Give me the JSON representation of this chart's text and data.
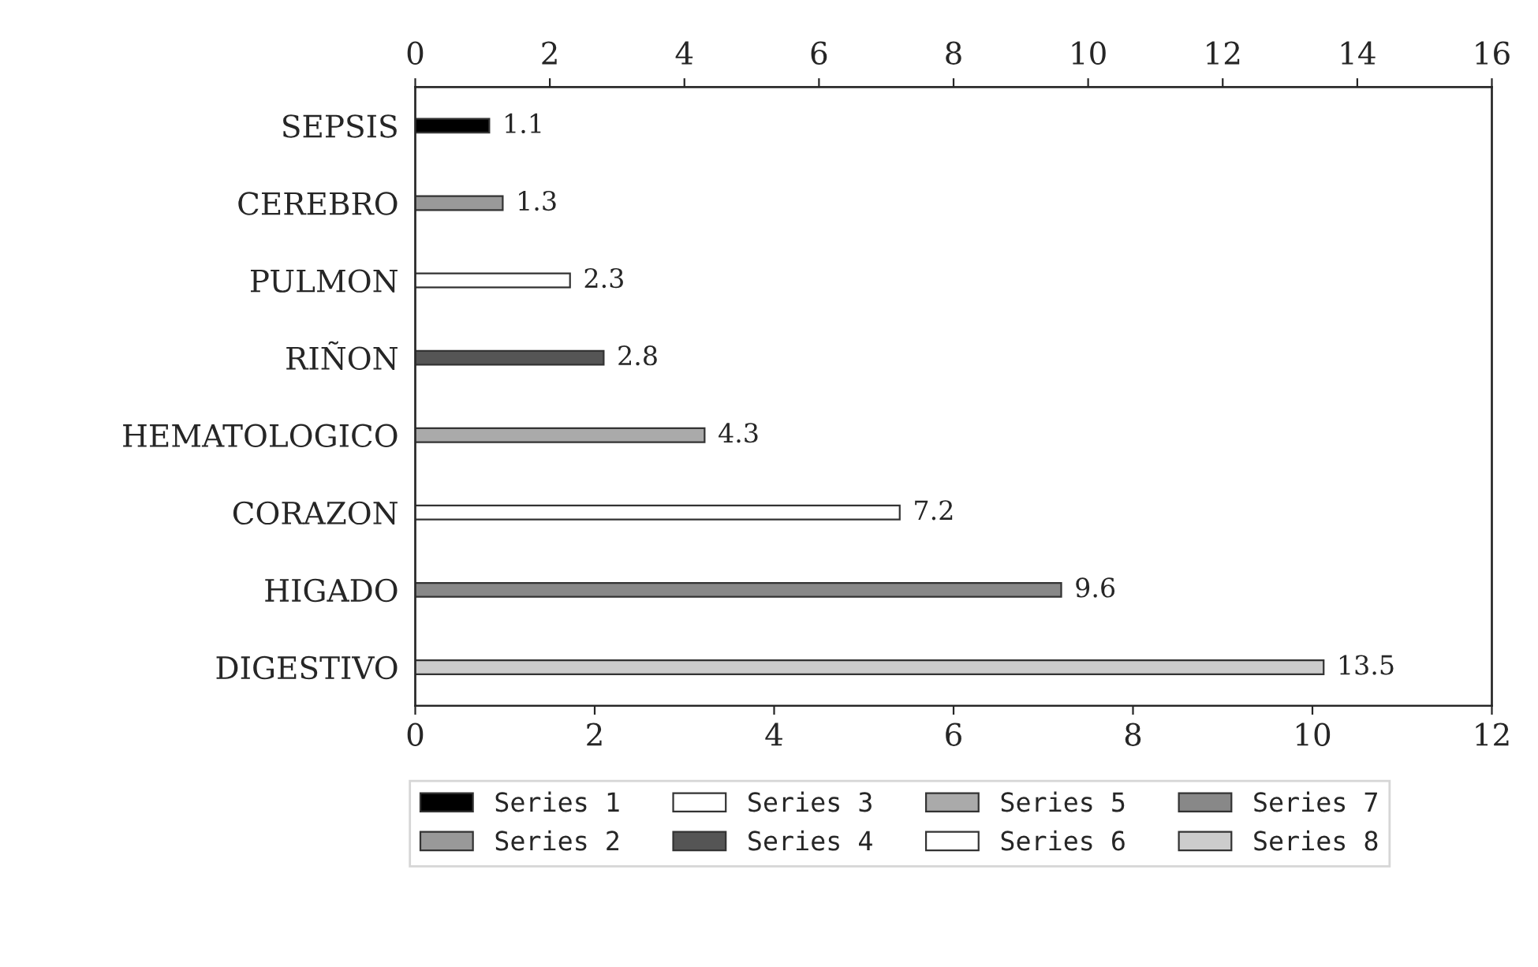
{
  "chart_data": {
    "type": "bar",
    "orientation": "horizontal",
    "categories": [
      "SEPSIS",
      "CEREBRO",
      "PULMON",
      "RIÑON",
      "HEMATOLOGICO",
      "CORAZON",
      "HIGADO",
      "DIGESTIVO"
    ],
    "series": [
      {
        "name": "Series 1",
        "color": "#000000",
        "axis": "x2",
        "values": [
          1.1,
          null,
          null,
          null,
          null,
          null,
          null,
          null
        ]
      },
      {
        "name": "Series 2",
        "color": "#999999",
        "axis": "x2",
        "values": [
          null,
          1.3,
          null,
          null,
          null,
          null,
          null,
          null
        ]
      },
      {
        "name": "Series 3",
        "color": "#ffffff",
        "axis": "x2",
        "values": [
          null,
          null,
          2.3,
          null,
          null,
          null,
          null,
          null
        ]
      },
      {
        "name": "Series 4",
        "color": "#555555",
        "axis": "x2",
        "values": [
          null,
          null,
          null,
          2.8,
          null,
          null,
          null,
          null
        ]
      },
      {
        "name": "Series 5",
        "color": "#aaaaaa",
        "axis": "x2",
        "values": [
          null,
          null,
          null,
          null,
          4.3,
          null,
          null,
          null
        ]
      },
      {
        "name": "Series 6",
        "color": "#ffffff",
        "axis": "x2",
        "values": [
          null,
          null,
          null,
          null,
          null,
          7.2,
          null,
          null
        ]
      },
      {
        "name": "Series 7",
        "color": "#888888",
        "axis": "x2",
        "values": [
          null,
          null,
          null,
          null,
          null,
          null,
          9.6,
          null
        ]
      },
      {
        "name": "Series 8",
        "color": "#cccccc",
        "axis": "x2",
        "values": [
          null,
          null,
          null,
          null,
          null,
          null,
          null,
          13.5
        ]
      }
    ],
    "xlim": [
      0,
      12
    ],
    "xticks": [
      0,
      2,
      4,
      6,
      8,
      10,
      12
    ],
    "x2lim": [
      0,
      16
    ],
    "x2ticks": [
      0,
      2,
      4,
      6,
      8,
      10,
      12,
      14,
      16
    ],
    "data_labels": true,
    "legend": "bottom",
    "grid": false
  }
}
